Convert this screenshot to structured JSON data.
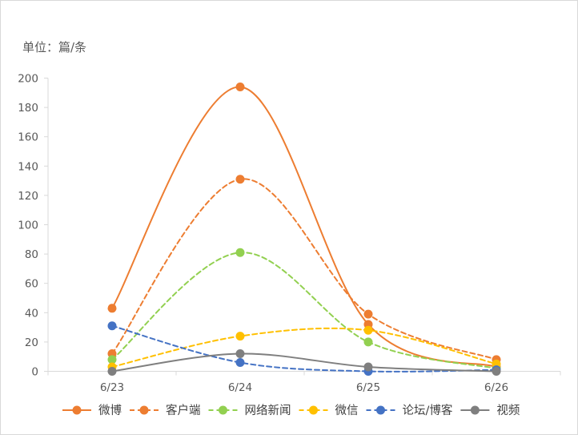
{
  "chart_data": {
    "type": "line",
    "title": "",
    "unit_label": "单位：篇/条",
    "categories": [
      "6/23",
      "6/24",
      "6/25",
      "6/26"
    ],
    "ylim": [
      0,
      200
    ],
    "yticks": [
      0,
      20,
      40,
      60,
      80,
      100,
      120,
      140,
      160,
      180,
      200
    ],
    "grid": false,
    "legend_position": "bottom",
    "series": [
      {
        "name": "微博",
        "values": [
          43,
          194,
          32,
          3
        ],
        "color": "#ED7D31",
        "dash": "solid"
      },
      {
        "name": "客户端",
        "values": [
          12,
          131,
          39,
          8
        ],
        "color": "#ED7D31",
        "dash": "dashed"
      },
      {
        "name": "网络新闻",
        "values": [
          8,
          81,
          20,
          2
        ],
        "color": "#92D050",
        "dash": "dashed"
      },
      {
        "name": "微信",
        "values": [
          3,
          24,
          28,
          5
        ],
        "color": "#FFC000",
        "dash": "dashed"
      },
      {
        "name": "论坛/博客",
        "values": [
          31,
          6,
          0,
          1
        ],
        "color": "#4472C4",
        "dash": "dashed"
      },
      {
        "name": "视频",
        "values": [
          0,
          12,
          3,
          0
        ],
        "color": "#7F7F7F",
        "dash": "solid"
      }
    ]
  }
}
